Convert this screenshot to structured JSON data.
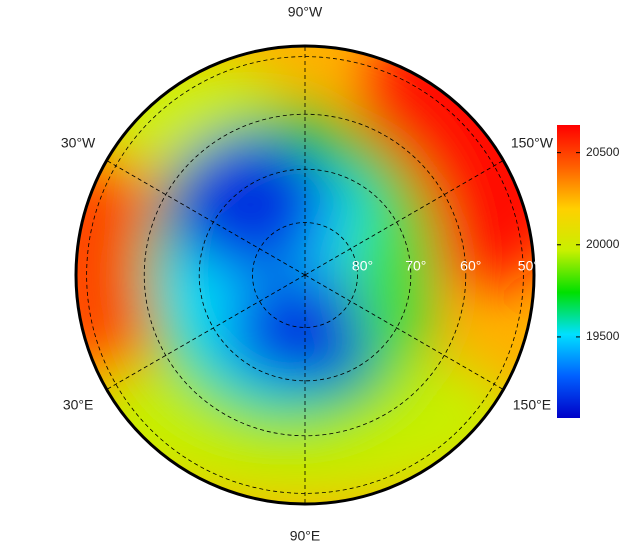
{
  "chart_data": {
    "type": "polar-map",
    "lon_labels": [
      {
        "value": -90,
        "label": "90°W"
      },
      {
        "value": -30,
        "label": "30°W"
      },
      {
        "value": -150,
        "label": "150°W"
      },
      {
        "value": 30,
        "label": "30°E"
      },
      {
        "value": 150,
        "label": "150°E"
      },
      {
        "value": 90,
        "label": "90°E"
      }
    ],
    "lat_labels": [
      {
        "value": 80,
        "label": "80°"
      },
      {
        "value": 70,
        "label": "70°"
      },
      {
        "value": 60,
        "label": "60°"
      },
      {
        "value": 50,
        "label": "50°"
      }
    ],
    "colorbar": {
      "lim": [
        19060,
        20650
      ],
      "ticks": [
        19500,
        20000,
        20500
      ],
      "colormap": [
        "#0000c8",
        "#0060ff",
        "#00e0ff",
        "#00e000",
        "#c8f000",
        "#ffd000",
        "#ff6000",
        "#ff0000"
      ]
    }
  }
}
